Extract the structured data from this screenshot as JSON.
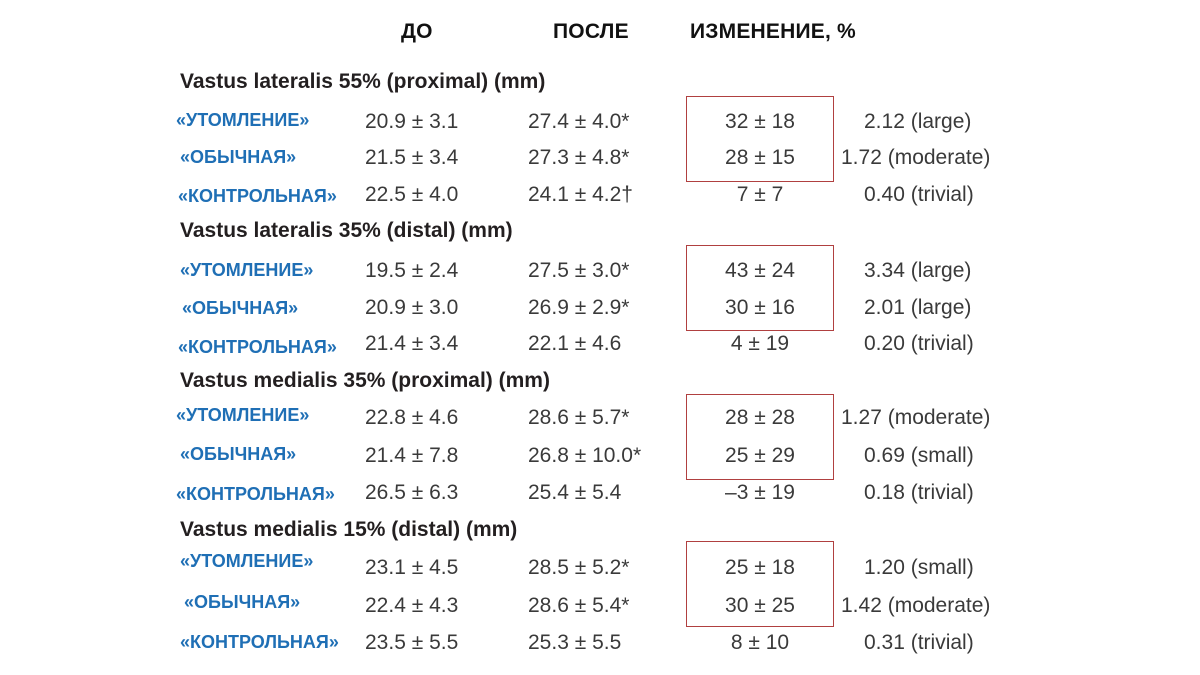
{
  "headers": {
    "before": "ДО",
    "after": "ПОСЛЕ",
    "change": "ИЗМЕНЕНИЕ, %"
  },
  "accent_colors": {
    "row_label": "#1f6fb5",
    "highlight_box": "#b04040"
  },
  "sections": [
    {
      "title": "Vastus lateralis 55% (proximal) (mm)",
      "rows": [
        {
          "label": "«УТОМЛЕНИЕ»",
          "before": "20.9 ± 3.1",
          "after": "27.4 ± 4.0*",
          "change": "32 ± 18",
          "effect": "2.12 (large)"
        },
        {
          "label": "«ОБЫЧНАЯ»",
          "before": "21.5 ± 3.4",
          "after": "27.3 ± 4.8*",
          "change": "28 ± 15",
          "effect": "1.72 (moderate)"
        },
        {
          "label": "«КОНТРОЛЬНАЯ»",
          "before": "22.5 ± 4.0",
          "after": "24.1 ± 4.2†",
          "change": "7 ± 7",
          "effect": "0.40 (trivial)"
        }
      ]
    },
    {
      "title": "Vastus lateralis 35% (distal) (mm)",
      "rows": [
        {
          "label": "«УТОМЛЕНИЕ»",
          "before": "19.5 ± 2.4",
          "after": "27.5 ± 3.0*",
          "change": "43 ± 24",
          "effect": "3.34 (large)"
        },
        {
          "label": "«ОБЫЧНАЯ»",
          "before": "20.9 ± 3.0",
          "after": "26.9 ± 2.9*",
          "change": "30 ± 16",
          "effect": "2.01 (large)"
        },
        {
          "label": "«КОНТРОЛЬНАЯ»",
          "before": "21.4 ± 3.4",
          "after": "22.1 ± 4.6",
          "change": "4 ± 19",
          "effect": "0.20 (trivial)"
        }
      ]
    },
    {
      "title": "Vastus medialis 35% (proximal) (mm)",
      "rows": [
        {
          "label": "«УТОМЛЕНИЕ»",
          "before": "22.8 ± 4.6",
          "after": "28.6 ± 5.7*",
          "change": "28 ± 28",
          "effect": "1.27 (moderate)"
        },
        {
          "label": "«ОБЫЧНАЯ»",
          "before": "21.4 ± 7.8",
          "after": "26.8 ± 10.0*",
          "change": "25 ± 29",
          "effect": "0.69 (small)"
        },
        {
          "label": "«КОНТРОЛЬНАЯ»",
          "before": "26.5 ± 6.3",
          "after": "25.4 ± 5.4",
          "change": "–3 ± 19",
          "effect": "0.18 (trivial)"
        }
      ]
    },
    {
      "title": "Vastus medialis 15% (distal) (mm)",
      "rows": [
        {
          "label": "«УТОМЛЕНИЕ»",
          "before": "23.1 ± 4.5",
          "after": "28.5 ± 5.2*",
          "change": "25 ± 18",
          "effect": "1.20 (small)"
        },
        {
          "label": "«ОБЫЧНАЯ»",
          "before": "22.4 ± 4.3",
          "after": "28.6 ± 5.4*",
          "change": "30 ± 25",
          "effect": "1.42 (moderate)"
        },
        {
          "label": "«КОНТРОЛЬНАЯ»",
          "before": "23.5 ± 5.5",
          "after": "25.3 ± 5.5",
          "change": "8 ± 10",
          "effect": "0.31 (trivial)"
        }
      ]
    }
  ]
}
